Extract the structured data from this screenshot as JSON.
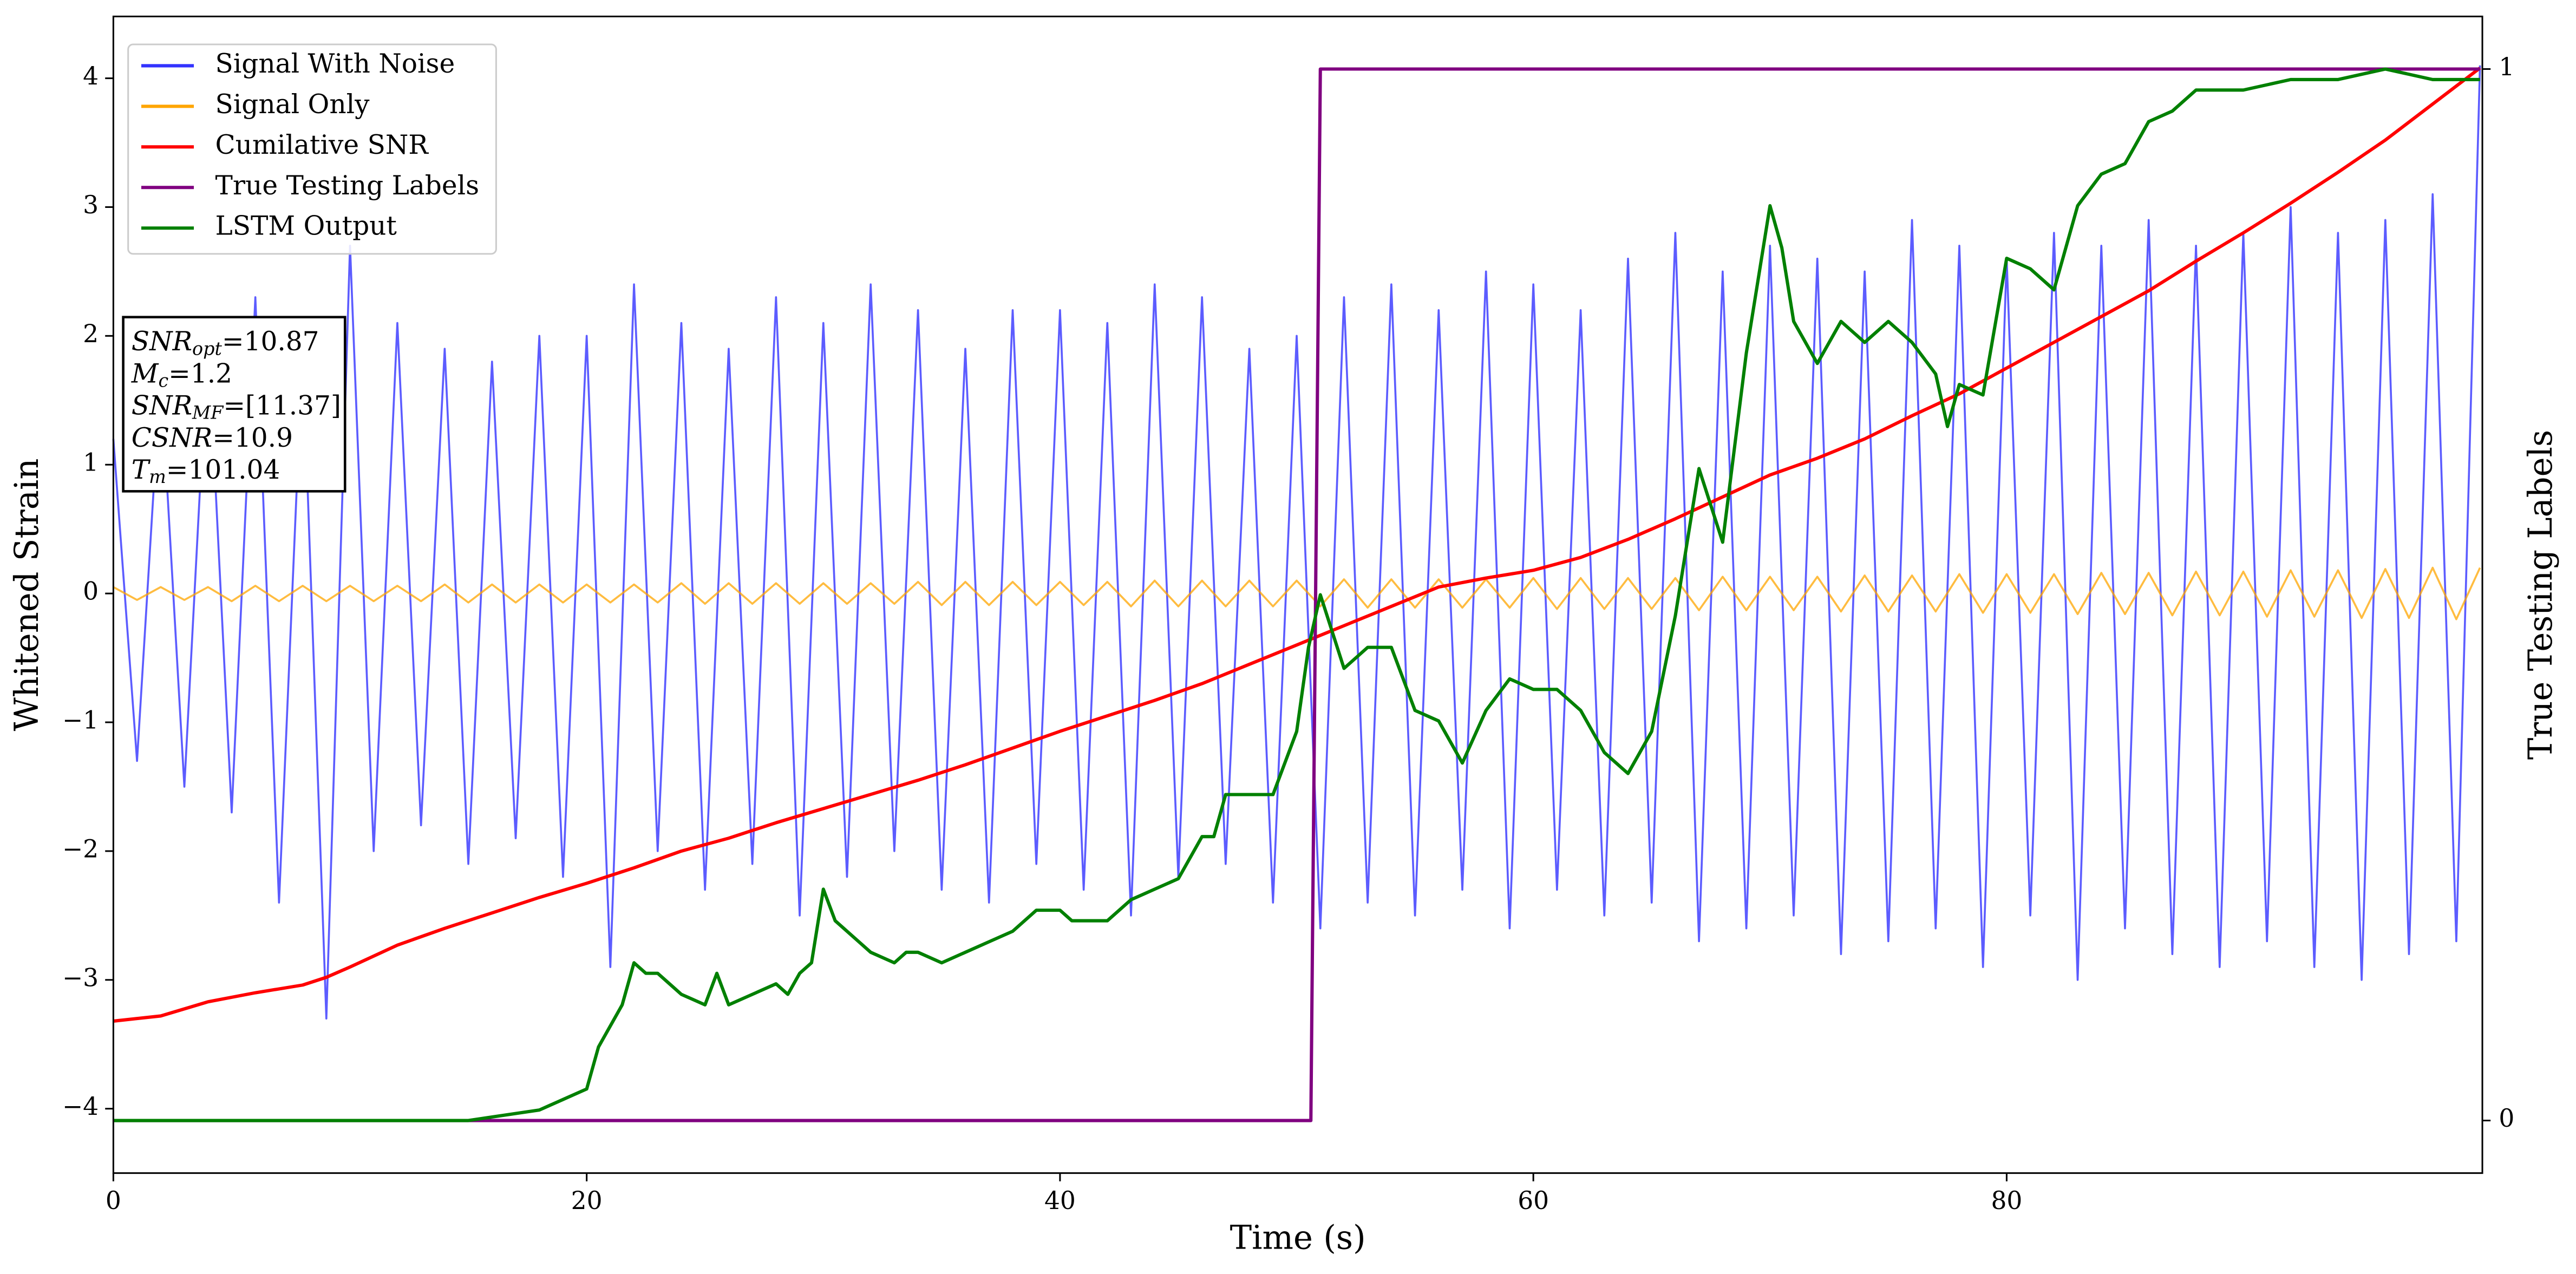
{
  "chart_data": {
    "type": "line",
    "xlabel": "Time (s)",
    "ylabel": "Whitened Strain",
    "y2label": "True Testing Labels",
    "xlim": [
      0,
      100.1
    ],
    "ylim": [
      -4.5,
      4.48
    ],
    "y2lim": [
      -0.05,
      1.05
    ],
    "xticks": [
      0,
      20,
      40,
      60,
      80
    ],
    "yticks": [
      {
        "value": -4,
        "label": "−4"
      },
      {
        "value": -3,
        "label": "−3"
      },
      {
        "value": -2,
        "label": "−2"
      },
      {
        "value": -1,
        "label": "−1"
      },
      0,
      1,
      2,
      3,
      4
    ],
    "y2ticks": [
      0,
      1
    ],
    "legend": "upper left",
    "x": [
      0,
      1,
      2,
      3,
      4,
      5,
      6,
      7,
      8,
      9,
      10,
      11,
      12,
      13,
      14,
      15,
      16,
      17,
      18,
      19,
      20,
      21,
      22,
      23,
      24,
      25,
      26,
      27,
      28,
      29,
      30,
      31,
      32,
      33,
      34,
      35,
      36,
      37,
      38,
      39,
      40,
      41,
      42,
      43,
      44,
      45,
      46,
      47,
      48,
      49,
      50,
      51,
      52,
      53,
      54,
      55,
      56,
      57,
      58,
      59,
      60,
      61,
      62,
      63,
      64,
      65,
      66,
      67,
      68,
      69,
      70,
      71,
      72,
      73,
      74,
      75,
      76,
      77,
      78,
      79,
      80,
      81,
      82,
      83,
      84,
      85,
      86,
      87,
      88,
      89,
      90,
      91,
      92,
      93,
      94,
      95,
      96,
      97,
      98,
      99,
      100
    ],
    "series": [
      {
        "name": "Signal With Noise",
        "color": "#3333ff",
        "values": [
          1.2,
          -1.3,
          1.7,
          -1.5,
          2.0,
          -1.7,
          2.3,
          -2.4,
          1.9,
          -3.3,
          2.7,
          -2.0,
          2.1,
          -1.8,
          1.9,
          -2.1,
          1.8,
          -1.9,
          2.0,
          -2.2,
          2.0,
          -2.9,
          2.4,
          -2.0,
          2.1,
          -2.3,
          1.9,
          -2.1,
          2.3,
          -2.5,
          2.1,
          -2.2,
          2.4,
          -2.0,
          2.2,
          -2.3,
          1.9,
          -2.4,
          2.2,
          -2.1,
          2.2,
          -2.3,
          2.1,
          -2.5,
          2.4,
          -2.2,
          2.3,
          -2.1,
          1.9,
          -2.4,
          2.0,
          -2.6,
          2.3,
          -2.4,
          2.4,
          -2.5,
          2.2,
          -2.3,
          2.5,
          -2.6,
          2.4,
          -2.3,
          2.2,
          -2.5,
          2.6,
          -2.4,
          2.8,
          -2.7,
          2.5,
          -2.6,
          2.7,
          -2.5,
          2.6,
          -2.8,
          2.5,
          -2.7,
          2.9,
          -2.6,
          2.7,
          -2.9,
          2.6,
          -2.5,
          2.8,
          -3.0,
          2.7,
          -2.6,
          2.9,
          -2.8,
          2.7,
          -2.9,
          2.8,
          -2.7,
          3.0,
          -2.9,
          2.8,
          -3.0,
          2.9,
          -2.8,
          3.1,
          -2.7,
          4.1
        ]
      },
      {
        "name": "Signal Only",
        "color": "#ffa500",
        "values": [
          0.05,
          -0.05,
          0.05,
          -0.05,
          0.05,
          -0.06,
          0.06,
          -0.06,
          0.06,
          -0.06,
          0.06,
          -0.06,
          0.06,
          -0.06,
          0.07,
          -0.07,
          0.07,
          -0.07,
          0.07,
          -0.07,
          0.07,
          -0.07,
          0.07,
          -0.07,
          0.08,
          -0.08,
          0.08,
          -0.08,
          0.08,
          -0.08,
          0.08,
          -0.08,
          0.08,
          -0.08,
          0.09,
          -0.09,
          0.09,
          -0.09,
          0.09,
          -0.09,
          0.09,
          -0.09,
          0.09,
          -0.1,
          0.1,
          -0.1,
          0.1,
          -0.1,
          0.1,
          -0.1,
          0.1,
          -0.1,
          0.11,
          -0.11,
          0.11,
          -0.11,
          0.11,
          -0.11,
          0.11,
          -0.11,
          0.12,
          -0.12,
          0.12,
          -0.12,
          0.12,
          -0.12,
          0.12,
          -0.13,
          0.13,
          -0.13,
          0.13,
          -0.13,
          0.13,
          -0.14,
          0.14,
          -0.14,
          0.14,
          -0.14,
          0.15,
          -0.15,
          0.15,
          -0.15,
          0.15,
          -0.16,
          0.16,
          -0.16,
          0.16,
          -0.17,
          0.17,
          -0.17,
          0.17,
          -0.18,
          0.18,
          -0.18,
          0.18,
          -0.19,
          0.19,
          -0.19,
          0.2,
          -0.2,
          0.2
        ]
      },
      {
        "name": "Cumilative SNR",
        "color": "#ff0000",
        "x": [
          0,
          2,
          4,
          6,
          8,
          9,
          10,
          12,
          14,
          16,
          18,
          20,
          22,
          24,
          26,
          28,
          30,
          32,
          34,
          36,
          38,
          40,
          42,
          44,
          46,
          48,
          50,
          52,
          54,
          56,
          58,
          60,
          62,
          64,
          66,
          68,
          70,
          72,
          74,
          76,
          78,
          80,
          82,
          84,
          86,
          88,
          90,
          92,
          94,
          96,
          98,
          100
        ],
        "values": [
          -3.32,
          -3.28,
          -3.17,
          -3.1,
          -3.04,
          -2.98,
          -2.9,
          -2.73,
          -2.6,
          -2.48,
          -2.36,
          -2.25,
          -2.13,
          -2.0,
          -1.9,
          -1.78,
          -1.67,
          -1.56,
          -1.45,
          -1.33,
          -1.2,
          -1.07,
          -0.95,
          -0.83,
          -0.7,
          -0.55,
          -0.4,
          -0.25,
          -0.1,
          0.05,
          0.12,
          0.18,
          0.28,
          0.42,
          0.58,
          0.75,
          0.92,
          1.05,
          1.2,
          1.38,
          1.55,
          1.75,
          1.95,
          2.15,
          2.35,
          2.58,
          2.8,
          3.03,
          3.27,
          3.52,
          3.8,
          4.08
        ]
      },
      {
        "name": "True Testing Labels",
        "color": "#800080",
        "axis": "y2",
        "x": [
          0,
          50.6,
          51.0,
          100
        ],
        "values": [
          0,
          0,
          1,
          1
        ]
      },
      {
        "name": "LSTM Output",
        "color": "#008000",
        "axis": "y2",
        "x": [
          0,
          15,
          18,
          19,
          20,
          20.5,
          21,
          21.5,
          22,
          22.5,
          23,
          23.5,
          24,
          25,
          25.5,
          26,
          27,
          28,
          28.5,
          29,
          29.5,
          30,
          30.5,
          31.5,
          32,
          33,
          33.5,
          34,
          35,
          36,
          37,
          38,
          39,
          40,
          40.5,
          41,
          42,
          43,
          44,
          45,
          46,
          46.5,
          47,
          48,
          49,
          50,
          50.5,
          51,
          52,
          53,
          54,
          55,
          56,
          57,
          58,
          59,
          60,
          61,
          62,
          63,
          64,
          65,
          66,
          67,
          68,
          69,
          70,
          70.5,
          71,
          72,
          73,
          74,
          75,
          76,
          77,
          77.5,
          78,
          79,
          80,
          81,
          82,
          83,
          84,
          85,
          86,
          87,
          88,
          90,
          92,
          94,
          96,
          98,
          100
        ],
        "values": [
          0,
          0,
          0.01,
          0.02,
          0.03,
          0.07,
          0.09,
          0.11,
          0.15,
          0.14,
          0.14,
          0.13,
          0.12,
          0.11,
          0.14,
          0.11,
          0.12,
          0.13,
          0.12,
          0.14,
          0.15,
          0.22,
          0.19,
          0.17,
          0.16,
          0.15,
          0.16,
          0.16,
          0.15,
          0.16,
          0.17,
          0.18,
          0.2,
          0.2,
          0.19,
          0.19,
          0.19,
          0.21,
          0.22,
          0.23,
          0.27,
          0.27,
          0.31,
          0.31,
          0.31,
          0.37,
          0.45,
          0.5,
          0.43,
          0.45,
          0.45,
          0.39,
          0.38,
          0.34,
          0.39,
          0.42,
          0.41,
          0.41,
          0.39,
          0.35,
          0.33,
          0.37,
          0.48,
          0.62,
          0.55,
          0.73,
          0.87,
          0.83,
          0.76,
          0.72,
          0.76,
          0.74,
          0.76,
          0.74,
          0.71,
          0.66,
          0.7,
          0.69,
          0.82,
          0.81,
          0.79,
          0.87,
          0.9,
          0.91,
          0.95,
          0.96,
          0.98,
          0.98,
          0.99,
          0.99,
          1.0,
          0.99,
          0.99
        ]
      }
    ],
    "annotation": [
      {
        "symbol": "SNR",
        "subscript": "opt",
        "text": "=10.87"
      },
      {
        "symbol": "M",
        "subscript": "c",
        "text": "=1.2"
      },
      {
        "symbol": "SNR",
        "subscript": "MF",
        "text": "=[11.37]"
      },
      {
        "symbol": "CSNR",
        "text": "=10.9"
      },
      {
        "symbol": "T",
        "subscript": "m",
        "text": "=101.04"
      }
    ]
  }
}
